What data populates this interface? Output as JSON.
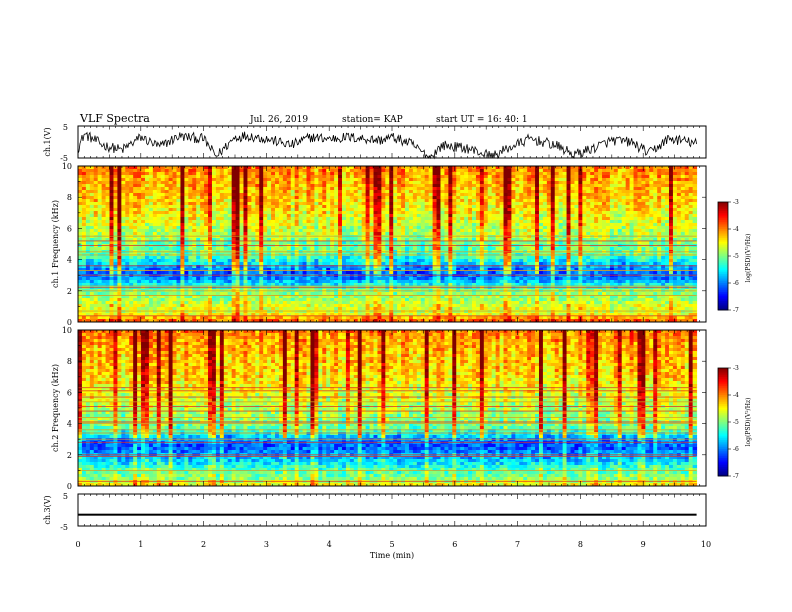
{
  "header": {
    "title": "VLF Spectra",
    "date": "Jul. 26, 2019",
    "station": "station= KAP",
    "start": "start UT = 16: 40: 1"
  },
  "chart_data": [
    {
      "type": "line",
      "name": "ch1-waveform",
      "ylabel": "ch.1(V)",
      "ylim": [
        -5,
        5
      ],
      "yticks": [
        "5",
        "-5"
      ],
      "xlim": [
        0,
        10
      ],
      "x_end": 9.85,
      "envelope": [
        {
          "x": 0.0,
          "y": -2.0
        },
        {
          "x": 0.1,
          "y": 2.5
        },
        {
          "x": 0.4,
          "y": -1.0
        },
        {
          "x": 0.7,
          "y": -2.5
        },
        {
          "x": 1.0,
          "y": 1.5
        },
        {
          "x": 1.3,
          "y": -1.5
        },
        {
          "x": 1.6,
          "y": 1.8
        },
        {
          "x": 2.0,
          "y": 1.0
        },
        {
          "x": 2.2,
          "y": -4.5
        },
        {
          "x": 2.5,
          "y": 1.5
        },
        {
          "x": 2.7,
          "y": 2.0
        },
        {
          "x": 3.0,
          "y": 1.0
        },
        {
          "x": 3.4,
          "y": -1.0
        },
        {
          "x": 3.7,
          "y": 1.5
        },
        {
          "x": 4.0,
          "y": 1.0
        },
        {
          "x": 4.3,
          "y": 1.5
        },
        {
          "x": 4.6,
          "y": 1.0
        },
        {
          "x": 4.8,
          "y": 0.5
        },
        {
          "x": 5.0,
          "y": 1.5
        },
        {
          "x": 5.3,
          "y": -0.5
        },
        {
          "x": 5.6,
          "y": -5.0
        },
        {
          "x": 5.8,
          "y": -1.0
        },
        {
          "x": 6.2,
          "y": -2.0
        },
        {
          "x": 6.6,
          "y": -4.5
        },
        {
          "x": 6.9,
          "y": -1.5
        },
        {
          "x": 7.2,
          "y": 1.0
        },
        {
          "x": 7.6,
          "y": -1.0
        },
        {
          "x": 7.9,
          "y": -4.0
        },
        {
          "x": 8.2,
          "y": -2.0
        },
        {
          "x": 8.5,
          "y": 0.5
        },
        {
          "x": 8.8,
          "y": 0.0
        },
        {
          "x": 9.1,
          "y": -3.5
        },
        {
          "x": 9.4,
          "y": 1.0
        },
        {
          "x": 9.6,
          "y": 0.5
        },
        {
          "x": 9.85,
          "y": -0.5
        }
      ]
    },
    {
      "type": "heatmap",
      "name": "ch1-spectrogram",
      "ylabel": "ch.1 Frequency (kHz)",
      "ylim": [
        0,
        10
      ],
      "xlim": [
        0,
        10
      ],
      "x_end": 9.85,
      "yticks": [
        "0",
        "2",
        "4",
        "6",
        "8",
        "10"
      ],
      "profile": [
        {
          "f": 0.0,
          "v": -3.8
        },
        {
          "f": 0.3,
          "v": -4.2
        },
        {
          "f": 0.6,
          "v": -4.7
        },
        {
          "f": 1.0,
          "v": -4.6
        },
        {
          "f": 1.5,
          "v": -4.9
        },
        {
          "f": 2.0,
          "v": -5.0
        },
        {
          "f": 2.4,
          "v": -5.5
        },
        {
          "f": 2.8,
          "v": -6.0
        },
        {
          "f": 3.3,
          "v": -6.1
        },
        {
          "f": 3.8,
          "v": -5.6
        },
        {
          "f": 4.2,
          "v": -5.2
        },
        {
          "f": 4.6,
          "v": -5.0
        },
        {
          "f": 5.0,
          "v": -5.1
        },
        {
          "f": 5.5,
          "v": -4.8
        },
        {
          "f": 6.0,
          "v": -4.7
        },
        {
          "f": 7.0,
          "v": -4.5
        },
        {
          "f": 8.0,
          "v": -4.3
        },
        {
          "f": 9.0,
          "v": -4.2
        },
        {
          "f": 10.0,
          "v": -4.0
        }
      ],
      "lines_khz": [
        0.4,
        0.7,
        1.7,
        2.0,
        2.2,
        2.3,
        3.0,
        3.3,
        3.6,
        4.3,
        4.5,
        4.9,
        5.2,
        5.5
      ]
    },
    {
      "type": "heatmap",
      "name": "ch2-spectrogram",
      "ylabel": "ch.2 Frequency (kHz)",
      "ylim": [
        0,
        10
      ],
      "xlim": [
        0,
        10
      ],
      "x_end": 9.85,
      "yticks": [
        "0",
        "2",
        "4",
        "6",
        "8",
        "10"
      ],
      "profile": [
        {
          "f": 0.0,
          "v": -4.4
        },
        {
          "f": 0.5,
          "v": -5.0
        },
        {
          "f": 1.0,
          "v": -5.2
        },
        {
          "f": 1.5,
          "v": -5.6
        },
        {
          "f": 2.0,
          "v": -5.9
        },
        {
          "f": 2.5,
          "v": -6.2
        },
        {
          "f": 3.0,
          "v": -6.0
        },
        {
          "f": 3.5,
          "v": -5.3
        },
        {
          "f": 4.0,
          "v": -5.0
        },
        {
          "f": 4.5,
          "v": -4.9
        },
        {
          "f": 5.0,
          "v": -4.8
        },
        {
          "f": 6.0,
          "v": -4.6
        },
        {
          "f": 7.0,
          "v": -4.4
        },
        {
          "f": 8.0,
          "v": -4.3
        },
        {
          "f": 9.0,
          "v": -4.2
        },
        {
          "f": 10.0,
          "v": -4.0
        }
      ],
      "lines_khz": [
        0.3,
        1.0,
        1.9,
        2.0,
        2.8,
        3.0,
        3.4,
        3.6,
        4.0,
        4.1,
        4.4,
        4.8,
        5.1,
        5.4,
        5.7,
        6.1,
        6.3
      ]
    },
    {
      "type": "line",
      "name": "ch3-waveform",
      "ylabel": "ch.3(V)",
      "ylim": [
        -5,
        5
      ],
      "yticks": [
        "5",
        "-5"
      ],
      "xlim": [
        0,
        10
      ],
      "x_end": 9.85,
      "level": -1.4,
      "band_halfwidth": 0.25,
      "xlabel": "Time (min)",
      "xticks": [
        "0",
        "1",
        "2",
        "3",
        "4",
        "5",
        "6",
        "7",
        "8",
        "9",
        "10"
      ]
    }
  ],
  "colorbars": [
    {
      "name": "ch1-colorbar",
      "label": "log(PSD)(V²/Hz)",
      "range": [
        -7,
        -3
      ],
      "ticks": [
        "-3",
        "-4",
        "-5",
        "-6",
        "-7"
      ]
    },
    {
      "name": "ch2-colorbar",
      "label": "log(PSD)(V²/Hz)",
      "range": [
        -7,
        -3
      ],
      "ticks": [
        "-3",
        "-4",
        "-5",
        "-6",
        "-7"
      ]
    }
  ]
}
